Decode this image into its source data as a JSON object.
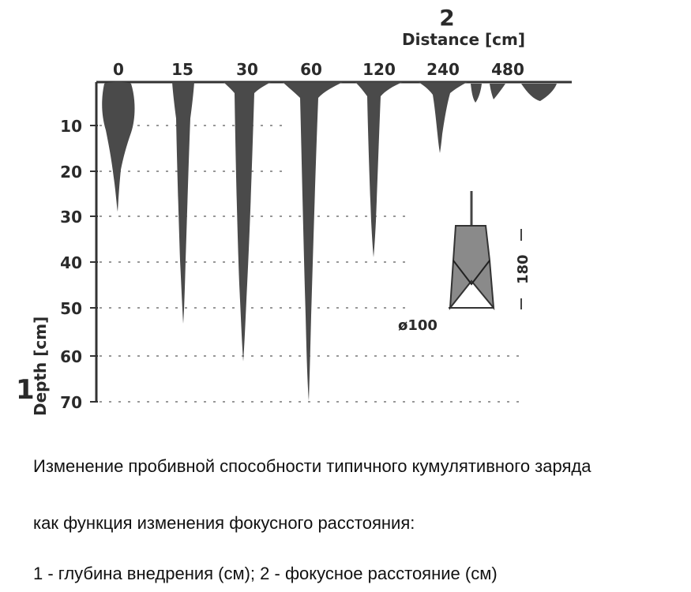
{
  "figure": {
    "depth_axis": {
      "marker": "1",
      "label": "Depth [cm]",
      "ticks": [
        "10",
        "20",
        "30",
        "40",
        "50",
        "60",
        "70"
      ]
    },
    "distance_axis": {
      "marker": "2",
      "label": "Distance [cm]",
      "ticks": [
        "0",
        "15",
        "30",
        "60",
        "120",
        "240",
        "480"
      ]
    },
    "penetration_depths_cm": [
      {
        "distance": "0",
        "depth": 28
      },
      {
        "distance": "15",
        "depth": 53
      },
      {
        "distance": "30",
        "depth": 61
      },
      {
        "distance": "60",
        "depth": 70
      },
      {
        "distance": "120",
        "depth": 38
      },
      {
        "distance": "240",
        "depth": 18
      },
      {
        "distance": "480",
        "depth": 4
      }
    ],
    "charge_inset": {
      "diameter_label": "ø100",
      "height_label": "180"
    }
  },
  "caption": {
    "line1": "Изменение пробивной способности типичного кумулятивного заряда",
    "line2": "как функция изменения фокусного расстояния:",
    "line3": "1 - глубина внедрения (см); 2 - фокусное расстояние (см)"
  }
}
